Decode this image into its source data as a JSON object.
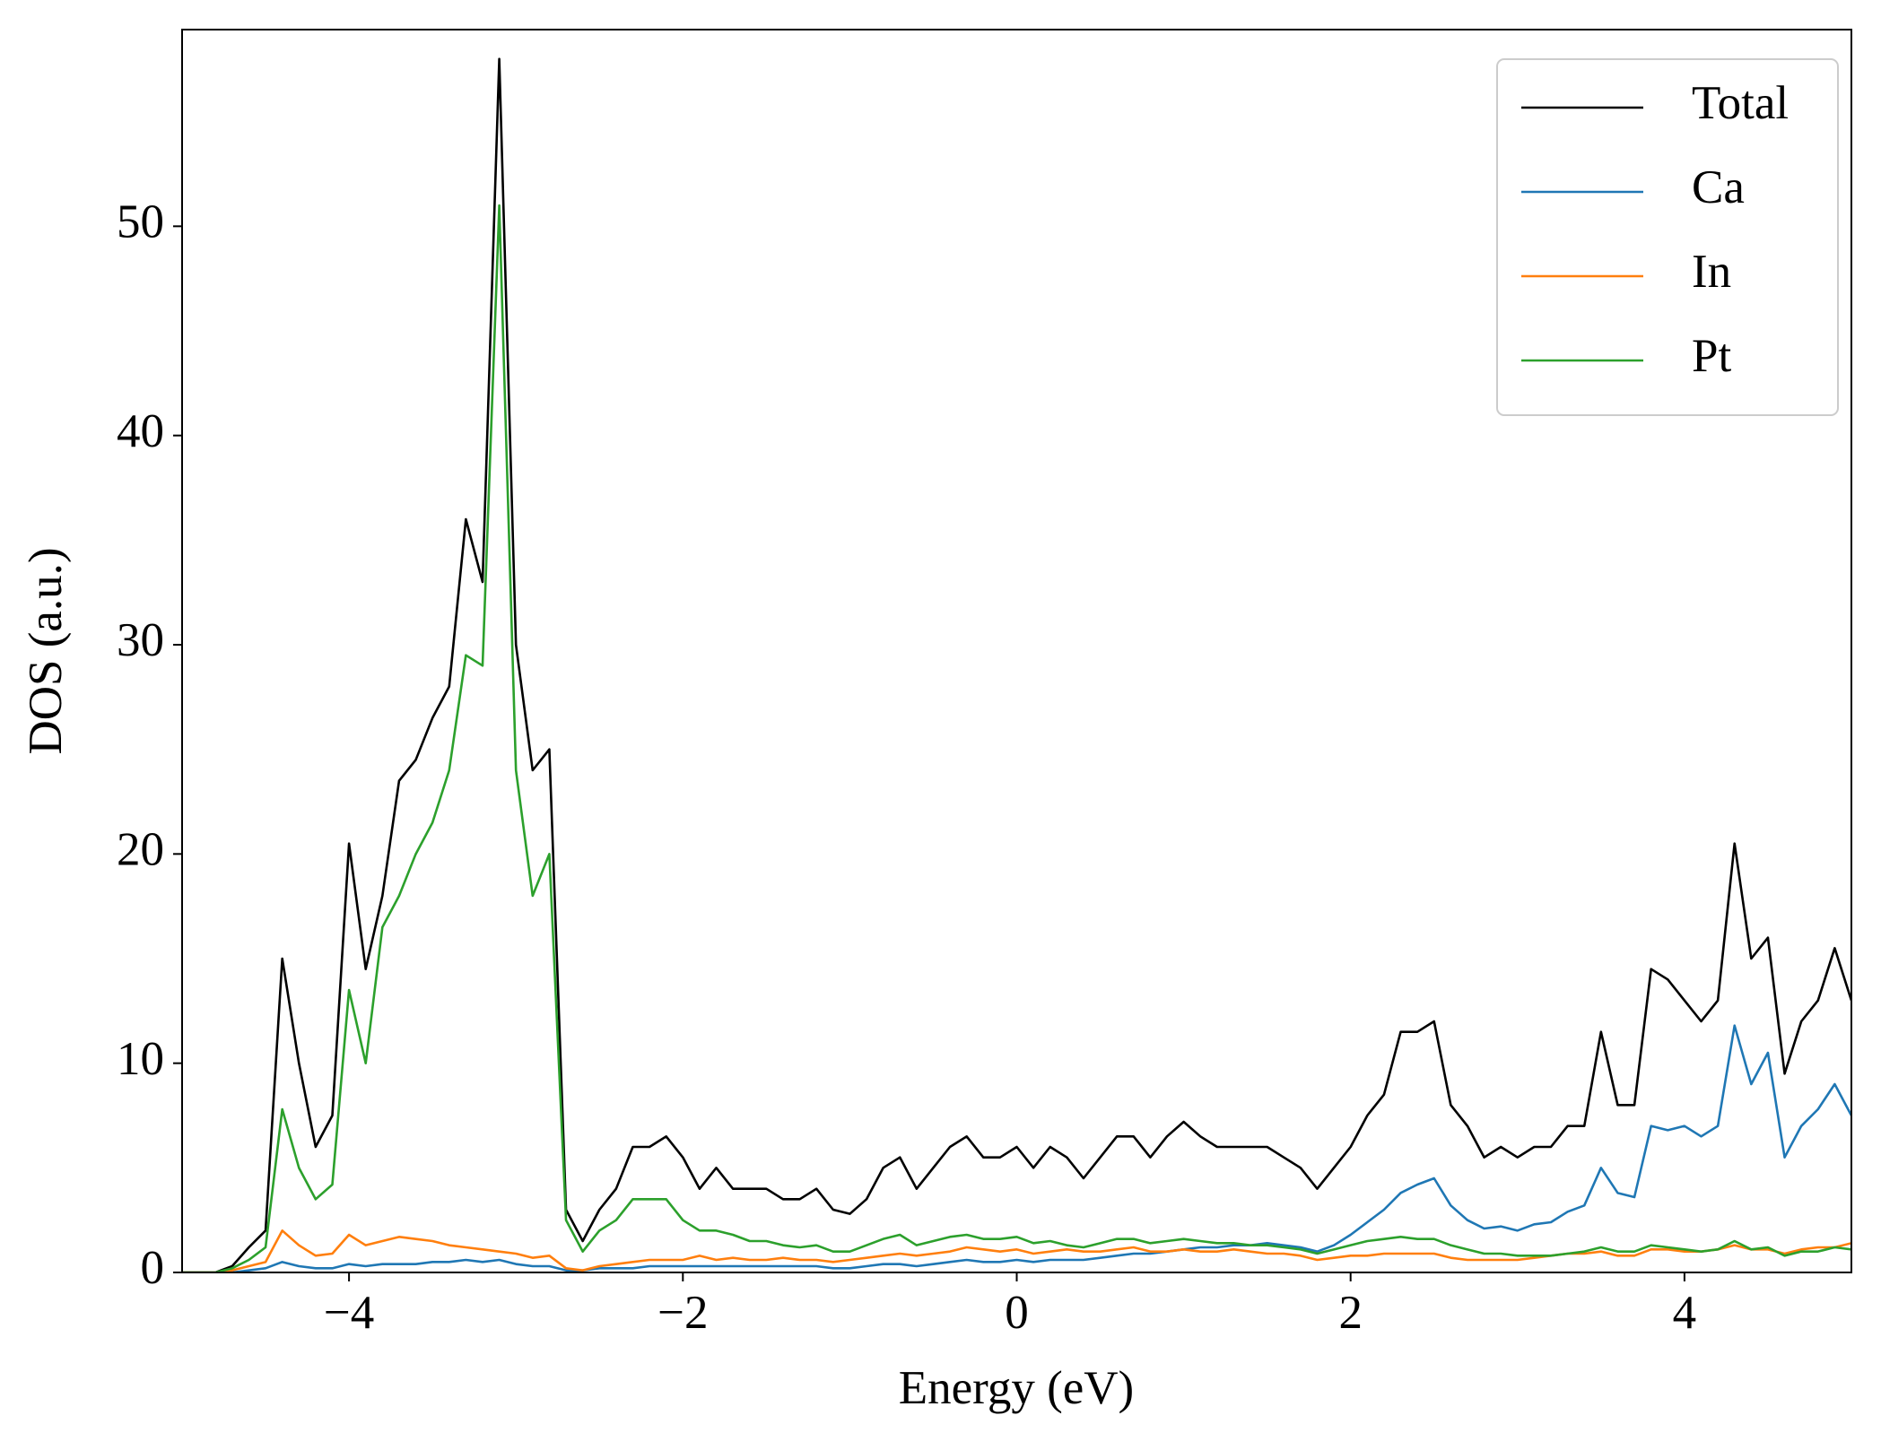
{
  "chart_data": {
    "type": "line",
    "xlabel": "Energy (eV)",
    "ylabel": "DOS (a.u.)",
    "xlim": [
      -5,
      5
    ],
    "ylim": [
      0,
      59.4
    ],
    "xticks": [
      {
        "value": -4,
        "label": "−4"
      },
      {
        "value": -2,
        "label": "−2"
      },
      0,
      2,
      4
    ],
    "yticks": [
      0,
      10,
      20,
      30,
      40,
      50
    ],
    "legend": "upper right",
    "x": [
      -5,
      -4.9,
      -4.8,
      -4.7,
      -4.6,
      -4.5,
      -4.4,
      -4.3,
      -4.2,
      -4.1,
      -4,
      -3.9,
      -3.8,
      -3.7,
      -3.6,
      -3.5,
      -3.4,
      -3.3,
      -3.2,
      -3.1,
      -3,
      -2.9,
      -2.8,
      -2.7,
      -2.6,
      -2.5,
      -2.4,
      -2.3,
      -2.2,
      -2.1,
      -2,
      -1.9,
      -1.8,
      -1.7,
      -1.6,
      -1.5,
      -1.4,
      -1.3,
      -1.2,
      -1.1,
      -1,
      -0.9,
      -0.8,
      -0.7,
      -0.6,
      -0.5,
      -0.4,
      -0.3,
      -0.2,
      -0.1,
      0,
      0.1,
      0.2,
      0.3,
      0.4,
      0.5,
      0.6,
      0.7,
      0.8,
      0.9,
      1,
      1.1,
      1.2,
      1.3,
      1.4,
      1.5,
      1.6,
      1.7,
      1.8,
      1.9,
      2,
      2.1,
      2.2,
      2.3,
      2.4,
      2.5,
      2.6,
      2.7,
      2.8,
      2.9,
      3,
      3.1,
      3.2,
      3.3,
      3.4,
      3.5,
      3.6,
      3.7,
      3.8,
      3.9,
      4,
      4.1,
      4.2,
      4.3,
      4.4,
      4.5,
      4.6,
      4.7,
      4.8,
      4.9,
      5
    ],
    "series": [
      {
        "name": "Total",
        "color": "#000000",
        "values": [
          0,
          0,
          0,
          0.3,
          1.2,
          2,
          15,
          10,
          6,
          7.5,
          20.5,
          14.5,
          18,
          23.5,
          24.5,
          26.5,
          28,
          36,
          33,
          58,
          30,
          24,
          25,
          3,
          1.5,
          3,
          4,
          6,
          6,
          6.5,
          5.5,
          4,
          5,
          4,
          4,
          4,
          3.5,
          3.5,
          4,
          3,
          2.8,
          3.5,
          5,
          5.5,
          4,
          5,
          6,
          6.5,
          5.5,
          5.5,
          6,
          5,
          6,
          5.5,
          4.5,
          5.5,
          6.5,
          6.5,
          5.5,
          6.5,
          7.2,
          6.5,
          6,
          6,
          6,
          6,
          5.5,
          5,
          4,
          5,
          6,
          7.5,
          8.5,
          11.5,
          11.5,
          12,
          8,
          7,
          5.5,
          6,
          5.5,
          6,
          6,
          7,
          7,
          11.5,
          8,
          8,
          14.5,
          14,
          13,
          12,
          13,
          20.5,
          15,
          16,
          9.5,
          12,
          13,
          15.5,
          13
        ]
      },
      {
        "name": "Ca",
        "color": "#1f77b4",
        "values": [
          0,
          0,
          0,
          0,
          0.1,
          0.2,
          0.5,
          0.3,
          0.2,
          0.2,
          0.4,
          0.3,
          0.4,
          0.4,
          0.4,
          0.5,
          0.5,
          0.6,
          0.5,
          0.6,
          0.4,
          0.3,
          0.3,
          0.1,
          0.1,
          0.2,
          0.2,
          0.2,
          0.3,
          0.3,
          0.3,
          0.3,
          0.3,
          0.3,
          0.3,
          0.3,
          0.3,
          0.3,
          0.3,
          0.2,
          0.2,
          0.3,
          0.4,
          0.4,
          0.3,
          0.4,
          0.5,
          0.6,
          0.5,
          0.5,
          0.6,
          0.5,
          0.6,
          0.6,
          0.6,
          0.7,
          0.8,
          0.9,
          0.9,
          1,
          1.1,
          1.2,
          1.2,
          1.3,
          1.3,
          1.4,
          1.3,
          1.2,
          1,
          1.3,
          1.8,
          2.4,
          3,
          3.8,
          4.2,
          4.5,
          3.2,
          2.5,
          2.1,
          2.2,
          2,
          2.3,
          2.4,
          2.9,
          3.2,
          5,
          3.8,
          3.6,
          7,
          6.8,
          7,
          6.5,
          7,
          11.8,
          9,
          10.5,
          5.5,
          7,
          7.8,
          9,
          7.5
        ]
      },
      {
        "name": "In",
        "color": "#ff7f0e",
        "values": [
          0,
          0,
          0,
          0.1,
          0.3,
          0.5,
          2,
          1.3,
          0.8,
          0.9,
          1.8,
          1.3,
          1.5,
          1.7,
          1.6,
          1.5,
          1.3,
          1.2,
          1.1,
          1,
          0.9,
          0.7,
          0.8,
          0.2,
          0.1,
          0.3,
          0.4,
          0.5,
          0.6,
          0.6,
          0.6,
          0.8,
          0.6,
          0.7,
          0.6,
          0.6,
          0.7,
          0.6,
          0.6,
          0.5,
          0.6,
          0.7,
          0.8,
          0.9,
          0.8,
          0.9,
          1,
          1.2,
          1.1,
          1,
          1.1,
          0.9,
          1,
          1.1,
          1,
          1,
          1.1,
          1.2,
          1,
          1,
          1.1,
          1,
          1,
          1.1,
          1,
          0.9,
          0.9,
          0.8,
          0.6,
          0.7,
          0.8,
          0.8,
          0.9,
          0.9,
          0.9,
          0.9,
          0.7,
          0.6,
          0.6,
          0.6,
          0.6,
          0.7,
          0.8,
          0.9,
          0.9,
          1,
          0.8,
          0.8,
          1.1,
          1.1,
          1,
          1,
          1.1,
          1.3,
          1.1,
          1.1,
          0.9,
          1.1,
          1.2,
          1.2,
          1.4
        ]
      },
      {
        "name": "Pt",
        "color": "#2ca02c",
        "values": [
          0,
          0,
          0,
          0.2,
          0.6,
          1.2,
          7.8,
          5,
          3.5,
          4.2,
          13.5,
          10,
          16.5,
          18,
          20,
          21.5,
          24,
          29.5,
          29,
          51,
          24,
          18,
          20,
          2.5,
          1,
          2,
          2.5,
          3.5,
          3.5,
          3.5,
          2.5,
          2,
          2,
          1.8,
          1.5,
          1.5,
          1.3,
          1.2,
          1.3,
          1,
          1,
          1.3,
          1.6,
          1.8,
          1.3,
          1.5,
          1.7,
          1.8,
          1.6,
          1.6,
          1.7,
          1.4,
          1.5,
          1.3,
          1.2,
          1.4,
          1.6,
          1.6,
          1.4,
          1.5,
          1.6,
          1.5,
          1.4,
          1.4,
          1.3,
          1.3,
          1.2,
          1.1,
          0.9,
          1.1,
          1.3,
          1.5,
          1.6,
          1.7,
          1.6,
          1.6,
          1.3,
          1.1,
          0.9,
          0.9,
          0.8,
          0.8,
          0.8,
          0.9,
          1,
          1.2,
          1,
          1,
          1.3,
          1.2,
          1.1,
          1,
          1.1,
          1.5,
          1.1,
          1.2,
          0.8,
          1,
          1,
          1.2,
          1.1
        ]
      }
    ]
  }
}
